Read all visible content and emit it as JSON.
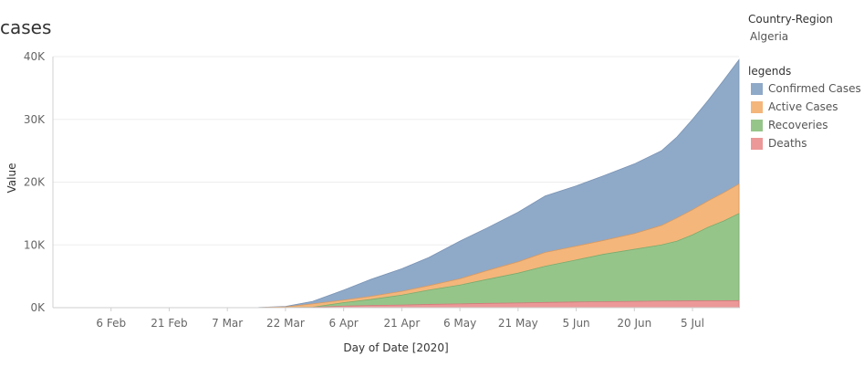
{
  "title": "cases",
  "filter": {
    "heading": "Country-Region",
    "value": "Algeria"
  },
  "legend_heading": "legends",
  "chart_data": {
    "type": "area",
    "stacked": false,
    "xlabel": "Day of Date [2020]",
    "ylabel": "Value",
    "ylim": [
      0,
      40000
    ],
    "yticks": [
      0,
      10000,
      20000,
      30000,
      40000
    ],
    "ytick_labels": [
      "0K",
      "10K",
      "20K",
      "30K",
      "40K"
    ],
    "x_dates": [
      "2020-01-22",
      "2020-03-01",
      "2020-03-15",
      "2020-03-22",
      "2020-03-29",
      "2020-04-06",
      "2020-04-13",
      "2020-04-21",
      "2020-04-28",
      "2020-05-06",
      "2020-05-13",
      "2020-05-21",
      "2020-05-28",
      "2020-06-05",
      "2020-06-12",
      "2020-06-20",
      "2020-06-27",
      "2020-07-01",
      "2020-07-05",
      "2020-07-09",
      "2020-07-13",
      "2020-07-17"
    ],
    "xticks": [
      "2020-02-06",
      "2020-02-21",
      "2020-03-07",
      "2020-03-22",
      "2020-04-06",
      "2020-04-21",
      "2020-05-06",
      "2020-05-21",
      "2020-06-05",
      "2020-06-20",
      "2020-07-05"
    ],
    "xtick_labels": [
      "6 Feb",
      "21 Feb",
      "7 Mar",
      "22 Mar",
      "6 Apr",
      "21 Apr",
      "6 May",
      "21 May",
      "5 Jun",
      "20 Jun",
      "5 Jul"
    ],
    "grid": true,
    "legend_position": "right",
    "series": [
      {
        "name": "Confirmed Cases",
        "color": "#8fa9c8",
        "values": [
          0,
          0,
          30,
          200,
          1000,
          2800,
          4500,
          6200,
          8000,
          10600,
          12700,
          15200,
          17800,
          19400,
          21000,
          22900,
          25000,
          27200,
          30000,
          33000,
          36200,
          39500
        ]
      },
      {
        "name": "Active Cases",
        "color": "#f4b67b",
        "values": [
          0,
          0,
          20,
          120,
          600,
          1200,
          1800,
          2600,
          3500,
          4600,
          5900,
          7300,
          8800,
          9800,
          10700,
          11800,
          13100,
          14300,
          15600,
          17000,
          18300,
          19700
        ]
      },
      {
        "name": "Recoveries",
        "color": "#96c58a",
        "values": [
          0,
          0,
          0,
          20,
          70,
          800,
          1300,
          2000,
          2800,
          3600,
          4500,
          5500,
          6600,
          7600,
          8500,
          9300,
          10000,
          10600,
          11600,
          12800,
          13800,
          15000
        ]
      },
      {
        "name": "Deaths",
        "color": "#ec9898",
        "values": [
          0,
          0,
          0,
          20,
          45,
          250,
          350,
          420,
          520,
          600,
          680,
          750,
          830,
          900,
          950,
          1000,
          1050,
          1060,
          1080,
          1090,
          1100,
          1120
        ]
      }
    ]
  }
}
